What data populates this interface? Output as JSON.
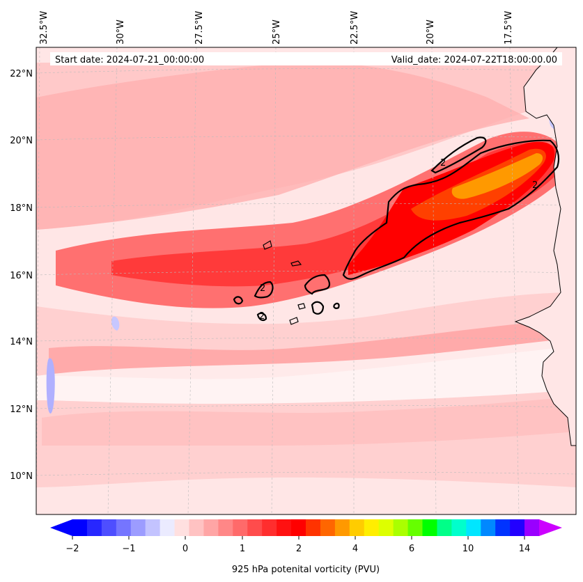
{
  "header": {
    "start_date": "Start date: 2024-07-21_00:00:00",
    "valid_date": "Valid_date: 2024-07-22T18:00:00.00"
  },
  "map": {
    "lon_labels": [
      "32.5°W",
      "30°W",
      "27.5°W",
      "25°W",
      "22.5°W",
      "20°W",
      "17.5°W"
    ],
    "lat_labels": [
      "22°N",
      "20°N",
      "18°N",
      "16°N",
      "14°N",
      "12°N",
      "10°N"
    ],
    "contour_label": "2"
  },
  "colorbar": {
    "tick_labels": [
      "−2",
      "−1",
      "0",
      "1",
      "2",
      "4",
      "6",
      "10",
      "14"
    ],
    "label": "925 hPa potenital vorticity (PVU)",
    "colors": [
      "#0000ff",
      "#2727ff",
      "#4e4eff",
      "#7575ff",
      "#9c9cff",
      "#c3c3ff",
      "#ebebff",
      "#ffe0e0",
      "#ffc2c2",
      "#ffa5a5",
      "#ff8787",
      "#ff6a6a",
      "#ff4c4c",
      "#ff2e2e",
      "#ff1111",
      "#ff0000",
      "#ff3300",
      "#ff6600",
      "#ff9900",
      "#ffcc00",
      "#ffee00",
      "#ddff00",
      "#aaff00",
      "#66ff00",
      "#00ff00",
      "#00ff88",
      "#00ffcc",
      "#00e6ff",
      "#0088ff",
      "#0033ff",
      "#2200ff",
      "#9900ff"
    ],
    "extend_low_color": "#0000ff",
    "extend_high_color": "#cc00ff"
  }
}
